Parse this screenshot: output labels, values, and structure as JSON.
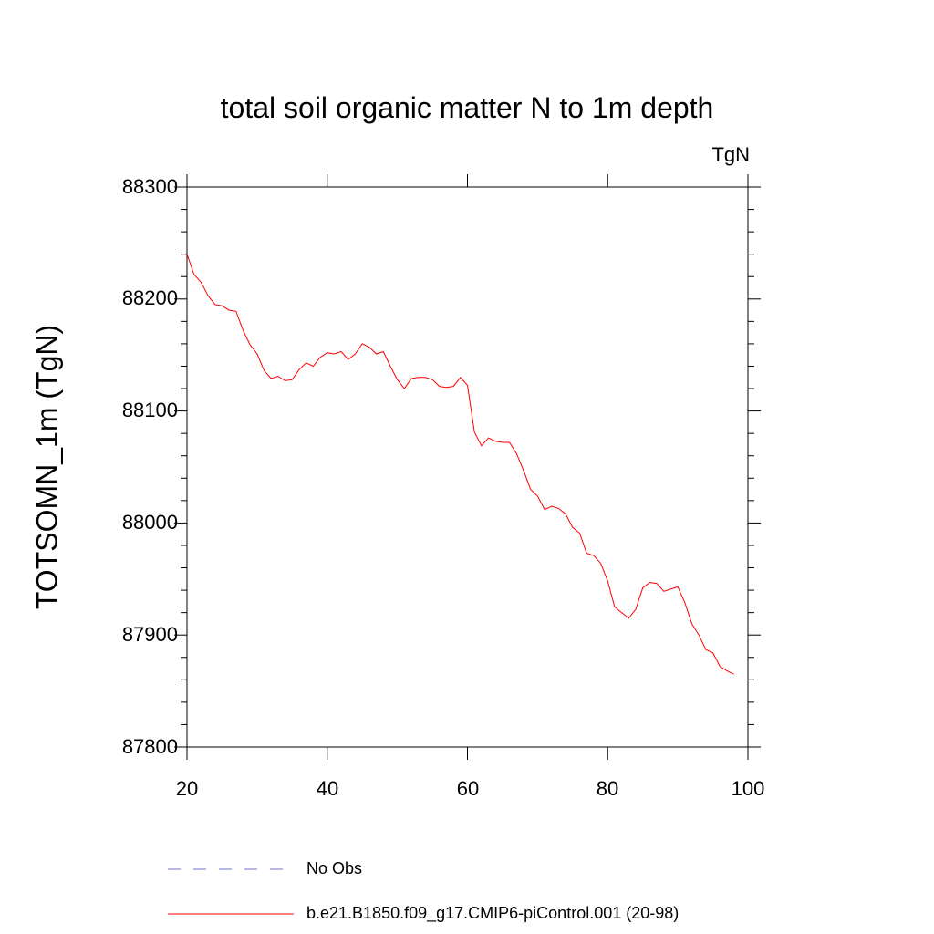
{
  "chart_data": {
    "type": "line",
    "title": "total soil organic matter N to 1m depth",
    "units_label": "TgN",
    "xlabel": "",
    "ylabel": "TOTSOMN_1m  (TgN)",
    "xlim": [
      20,
      100
    ],
    "ylim": [
      87800,
      88300
    ],
    "xticks": [
      "20",
      "40",
      "60",
      "80",
      "100"
    ],
    "yticks": [
      "87800",
      "87900",
      "88000",
      "88100",
      "88200",
      "88300"
    ],
    "series": [
      {
        "name": "b.e21.B1850.f09_g17.CMIP6-piControl.001 (20-98)",
        "color": "#ff0000",
        "style": "solid",
        "x": [
          20,
          21,
          22,
          23,
          24,
          25,
          26,
          27,
          28,
          29,
          30,
          31,
          32,
          33,
          34,
          35,
          36,
          37,
          38,
          39,
          40,
          41,
          42,
          43,
          44,
          45,
          46,
          47,
          48,
          49,
          50,
          51,
          52,
          53,
          54,
          55,
          56,
          57,
          58,
          59,
          60,
          61,
          62,
          63,
          64,
          65,
          66,
          67,
          68,
          69,
          70,
          71,
          72,
          73,
          74,
          75,
          76,
          77,
          78,
          79,
          80,
          81,
          82,
          83,
          84,
          85,
          86,
          87,
          88,
          89,
          90,
          91,
          92,
          93,
          94,
          95,
          96,
          97,
          98
        ],
        "values": [
          88240,
          88222,
          88215,
          88203,
          88195,
          88194,
          88190,
          88189,
          88172,
          88159,
          88151,
          88136,
          88129,
          88131,
          88127,
          88128,
          88137,
          88143,
          88140,
          88148,
          88152,
          88151,
          88153,
          88146,
          88151,
          88160,
          88157,
          88151,
          88153,
          88140,
          88128,
          88120,
          88129,
          88130,
          88130,
          88128,
          88122,
          88121,
          88122,
          88130,
          88123,
          88081,
          88069,
          88076,
          88073,
          88072,
          88072,
          88062,
          88047,
          88030,
          88024,
          88012,
          88015,
          88013,
          88008,
          87996,
          87991,
          87973,
          87971,
          87964,
          87948,
          87925,
          87920,
          87915,
          87923,
          87942,
          87947,
          87946,
          87939,
          87941,
          87943,
          87929,
          87910,
          87900,
          87887,
          87884,
          87872,
          87868,
          87865
        ]
      },
      {
        "name": "No Obs",
        "color": "#7070cc",
        "style": "dashed",
        "x": [],
        "values": []
      }
    ],
    "legend_position": "bottom"
  }
}
